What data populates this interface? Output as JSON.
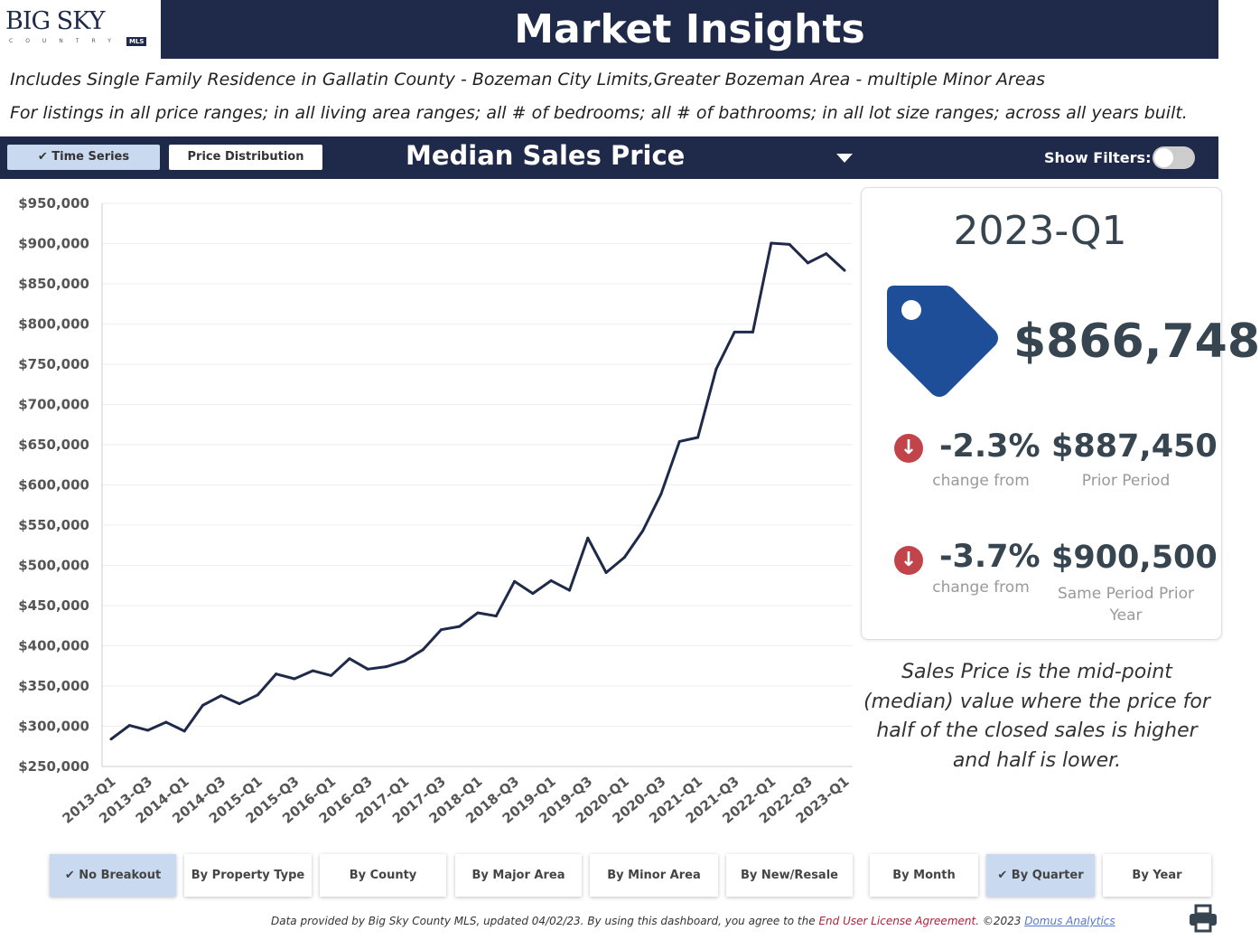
{
  "logo": {
    "text": "BIG SKY",
    "sub": "COUNTRY",
    "badge": "MLS"
  },
  "header": {
    "title": "Market Insights"
  },
  "subtitle": {
    "line1": "Includes Single Family Residence in Gallatin County - Bozeman City Limits,Greater Bozeman Area - multiple Minor Areas",
    "line2": "For listings in all price ranges; in all living area ranges; all # of bedrooms; all # of bathrooms; in all lot size ranges; across all years built."
  },
  "toolbar": {
    "time_series": "Time Series",
    "price_distribution": "Price Distribution",
    "metric": "Median Sales Price",
    "show_filters": "Show Filters:",
    "show_filters_on": false
  },
  "colors": {
    "navy": "#1f2a4a",
    "tag": "#1f4e99",
    "down": "#c0444a",
    "selected": "#c9d9ef"
  },
  "chart_data": {
    "type": "line",
    "title": "",
    "xlabel": "",
    "ylabel": "",
    "ylim": [
      250000,
      950000
    ],
    "yticks": [
      "$250,000",
      "$300,000",
      "$350,000",
      "$400,000",
      "$450,000",
      "$500,000",
      "$550,000",
      "$600,000",
      "$650,000",
      "$700,000",
      "$750,000",
      "$800,000",
      "$850,000",
      "$900,000",
      "$950,000"
    ],
    "xticks": [
      "2013-Q1",
      "2013-Q3",
      "2014-Q1",
      "2014-Q3",
      "2015-Q1",
      "2015-Q3",
      "2016-Q1",
      "2016-Q3",
      "2017-Q1",
      "2017-Q3",
      "2018-Q1",
      "2018-Q3",
      "2019-Q1",
      "2019-Q3",
      "2020-Q1",
      "2020-Q3",
      "2021-Q1",
      "2021-Q3",
      "2022-Q1",
      "2022-Q3",
      "2023-Q1"
    ],
    "grid": true,
    "categories": [
      "2013-Q1",
      "2013-Q2",
      "2013-Q3",
      "2013-Q4",
      "2014-Q1",
      "2014-Q2",
      "2014-Q3",
      "2014-Q4",
      "2015-Q1",
      "2015-Q2",
      "2015-Q3",
      "2015-Q4",
      "2016-Q1",
      "2016-Q2",
      "2016-Q3",
      "2016-Q4",
      "2017-Q1",
      "2017-Q2",
      "2017-Q3",
      "2017-Q4",
      "2018-Q1",
      "2018-Q2",
      "2018-Q3",
      "2018-Q4",
      "2019-Q1",
      "2019-Q2",
      "2019-Q3",
      "2019-Q4",
      "2020-Q1",
      "2020-Q2",
      "2020-Q3",
      "2020-Q4",
      "2021-Q1",
      "2021-Q2",
      "2021-Q3",
      "2021-Q4",
      "2022-Q1",
      "2022-Q2",
      "2022-Q3",
      "2022-Q4",
      "2023-Q1"
    ],
    "values": [
      284000,
      301000,
      295000,
      305000,
      294000,
      326000,
      338000,
      328000,
      339000,
      365000,
      359000,
      369000,
      363000,
      384000,
      371000,
      374000,
      381000,
      395000,
      420000,
      424000,
      441000,
      437000,
      480000,
      465000,
      481000,
      469000,
      534000,
      491000,
      510000,
      543000,
      589000,
      654000,
      659000,
      744000,
      790000,
      790000,
      900500,
      899000,
      876000,
      887450,
      866748
    ],
    "color": "#1f2a4a"
  },
  "card": {
    "period": "2023-Q1",
    "value": "$866,748",
    "rows": [
      {
        "pct": "-2.3%",
        "change_label": "change from",
        "ref_value": "$887,450",
        "ref_label": "Prior Period"
      },
      {
        "pct": "-3.7%",
        "change_label": "change from",
        "ref_value": "$900,500",
        "ref_label": "Same Period Prior Year"
      }
    ]
  },
  "description": "Sales Price is the mid-point (median) value where the price for half of the closed sales is higher and half is lower.",
  "breakouts": [
    "No Breakout",
    "By Property Type",
    "By County",
    "By Major Area",
    "By Minor Area",
    "By New/Resale"
  ],
  "periods": [
    "By Month",
    "By Quarter",
    "By Year"
  ],
  "selected": {
    "breakout": "No Breakout",
    "period": "By Quarter"
  },
  "footer": {
    "text": "Data provided by Big Sky County MLS, updated 04/02/23.  By using this dashboard, you agree to the ",
    "eula": "End User License Agreement.",
    "copyright": "  ©2023 ",
    "domus": "Domus Analytics"
  }
}
